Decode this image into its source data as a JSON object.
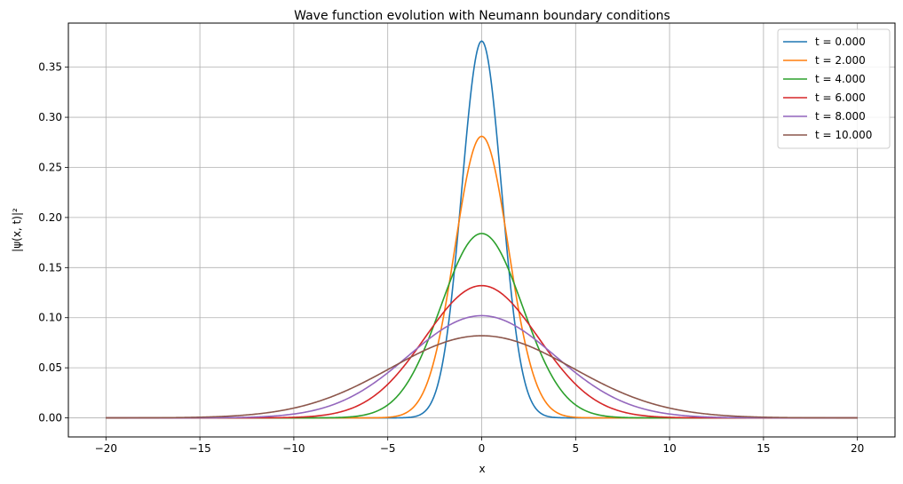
{
  "chart_data": {
    "type": "line",
    "title": "Wave function evolution with Neumann boundary conditions",
    "xlabel": "x",
    "ylabel": "|ψ(x, t)|²",
    "xlim": [
      -22,
      22
    ],
    "ylim": [
      -0.019,
      0.394
    ],
    "xticks": [
      -20,
      -15,
      -10,
      -5,
      0,
      5,
      10,
      15,
      20
    ],
    "yticks": [
      0.0,
      0.05,
      0.1,
      0.15,
      0.2,
      0.25,
      0.3,
      0.35
    ],
    "ytick_labels": [
      "0.00",
      "0.05",
      "0.10",
      "0.15",
      "0.20",
      "0.25",
      "0.30",
      "0.35"
    ],
    "grid": true,
    "legend_position": "top-right",
    "x_domain": [
      -20,
      20
    ],
    "series": [
      {
        "name": "t = 0.000",
        "color": "#1f77b4",
        "peak": 0.376,
        "sigma": 1.06
      },
      {
        "name": "t = 2.000",
        "color": "#ff7f0e",
        "peak": 0.281,
        "sigma": 1.42
      },
      {
        "name": "t = 4.000",
        "color": "#2ca02c",
        "peak": 0.184,
        "sigma": 2.17
      },
      {
        "name": "t = 6.000",
        "color": "#d62728",
        "peak": 0.132,
        "sigma": 3.02
      },
      {
        "name": "t = 8.000",
        "color": "#9467bd",
        "peak": 0.102,
        "sigma": 3.91
      },
      {
        "name": "t = 10.000",
        "color": "#8c564b",
        "peak": 0.082,
        "sigma": 4.85
      }
    ]
  }
}
